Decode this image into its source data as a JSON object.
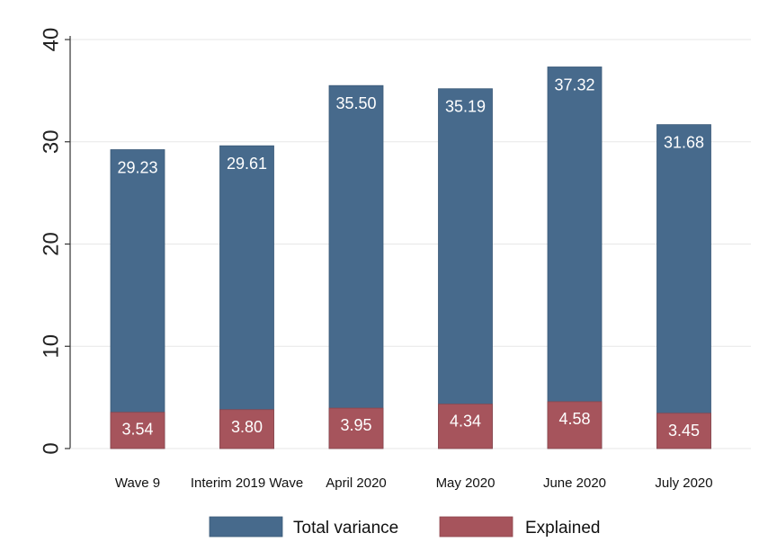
{
  "chart_data": {
    "type": "bar",
    "stacked": false,
    "overlay": true,
    "categories": [
      "Wave 9",
      "Interim 2019 Wave",
      "April 2020",
      "May 2020",
      "June 2020",
      "July 2020"
    ],
    "series": [
      {
        "name": "Total variance",
        "color": "#476a8c",
        "values": [
          29.23,
          29.61,
          35.5,
          35.19,
          37.32,
          31.68
        ],
        "labels": [
          "29.23",
          "29.61",
          "35.50",
          "35.19",
          "37.32",
          "31.68"
        ]
      },
      {
        "name": "Explained",
        "color": "#a6545c",
        "values": [
          3.54,
          3.8,
          3.95,
          4.34,
          4.58,
          3.45
        ],
        "labels": [
          "3.54",
          "3.80",
          "3.95",
          "4.34",
          "4.58",
          "3.45"
        ]
      }
    ],
    "ylim": [
      0,
      40
    ],
    "yticks": [
      0,
      10,
      20,
      30,
      40
    ],
    "ytick_labels": [
      "0",
      "10",
      "20",
      "30",
      "40"
    ],
    "grid": true,
    "legend_position": "bottom"
  }
}
